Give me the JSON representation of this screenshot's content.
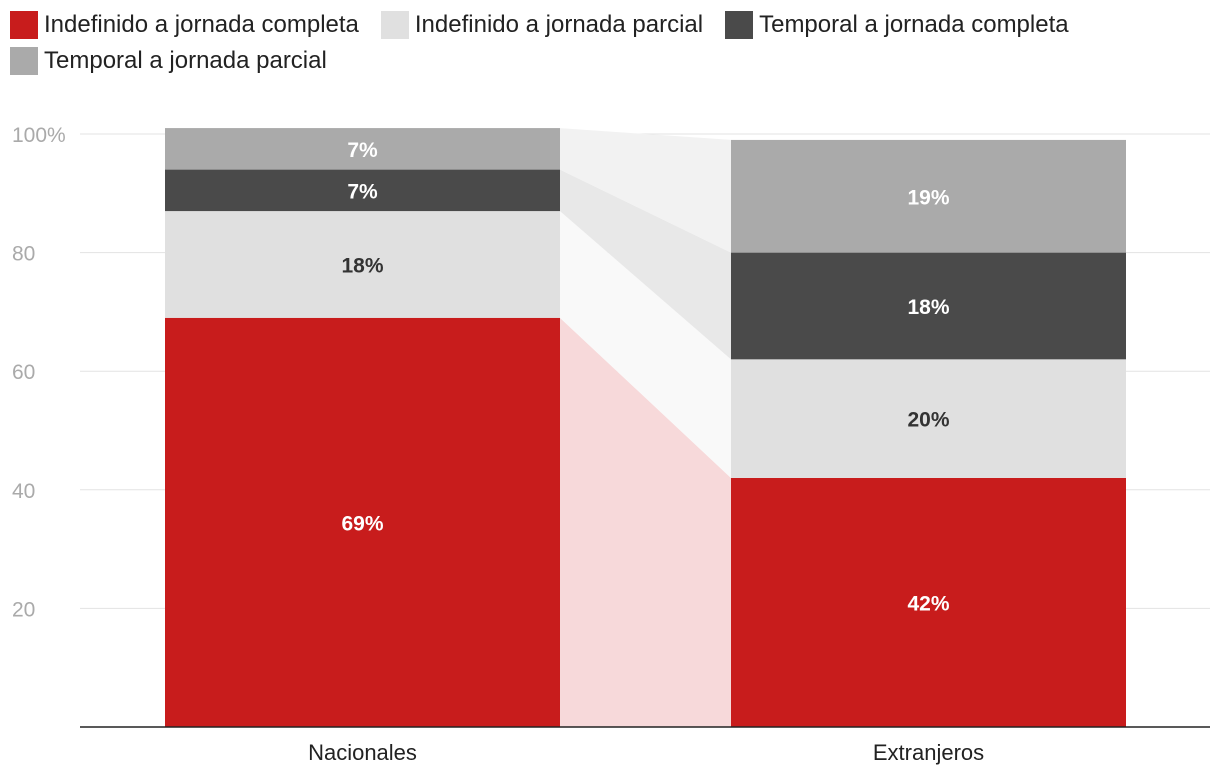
{
  "chart_data": {
    "type": "bar",
    "stacked": true,
    "categories": [
      "Nacionales",
      "Extranjeros"
    ],
    "series": [
      {
        "name": "Indefinido a jornada completa",
        "values": [
          69,
          42
        ],
        "labels": [
          "69%",
          "42%"
        ],
        "color": "#c81c1c",
        "label_color": "#ffffff"
      },
      {
        "name": "Indefinido a jornada parcial",
        "values": [
          18,
          20
        ],
        "labels": [
          "18%",
          "20%"
        ],
        "color": "#e0e0e0",
        "label_color": "#333333"
      },
      {
        "name": "Temporal a jornada completa",
        "values": [
          7,
          18
        ],
        "labels": [
          "7%",
          "18%"
        ],
        "color": "#4a4a4a",
        "label_color": "#ffffff"
      },
      {
        "name": "Temporal a jornada parcial",
        "values": [
          7,
          19
        ],
        "labels": [
          "7%",
          "19%"
        ],
        "color": "#aaaaaa",
        "label_color": "#ffffff"
      }
    ],
    "y_ticks": [
      "20",
      "40",
      "60",
      "80",
      "100%"
    ],
    "y_tick_values": [
      20,
      40,
      60,
      80,
      100
    ],
    "ylim": [
      0,
      100
    ],
    "legend_position": "top-left",
    "grid": true,
    "connectors": true
  }
}
